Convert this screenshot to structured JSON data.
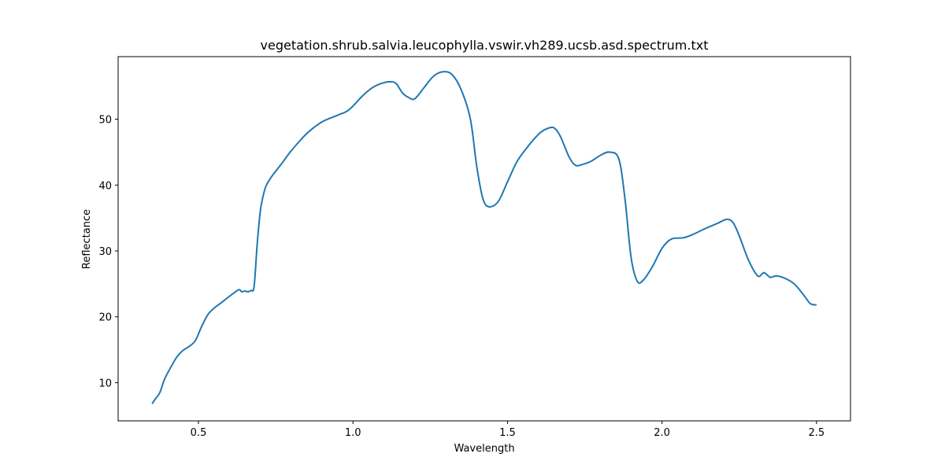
{
  "chart_data": {
    "type": "line",
    "title": "vegetation.shrub.salvia.leucophylla.vswir.vh289.ucsb.asd.spectrum.txt",
    "xlabel": "Wavelength",
    "ylabel": "Reflectance",
    "xlim": [
      0.24,
      2.61
    ],
    "ylim": [
      4.2,
      59.5
    ],
    "xticks": [
      0.5,
      1.0,
      1.5,
      2.0,
      2.5
    ],
    "xtick_labels": [
      "0.5",
      "1.0",
      "1.5",
      "2.0",
      "2.5"
    ],
    "yticks": [
      10,
      20,
      30,
      40,
      50
    ],
    "ytick_labels": [
      "10",
      "20",
      "30",
      "40",
      "50"
    ],
    "grid": false,
    "line_color": "#1f77b4",
    "series": [
      {
        "x": [
          0.35,
          0.36,
          0.375,
          0.39,
          0.41,
          0.43,
          0.45,
          0.47,
          0.49,
          0.51,
          0.53,
          0.55,
          0.57,
          0.6,
          0.63,
          0.64,
          0.65,
          0.66,
          0.67,
          0.68,
          0.69,
          0.7,
          0.71,
          0.72,
          0.74,
          0.77,
          0.8,
          0.85,
          0.9,
          0.95,
          0.98,
          1.0,
          1.03,
          1.06,
          1.09,
          1.12,
          1.14,
          1.16,
          1.18,
          1.2,
          1.23,
          1.26,
          1.29,
          1.32,
          1.35,
          1.38,
          1.4,
          1.42,
          1.44,
          1.47,
          1.5,
          1.53,
          1.56,
          1.59,
          1.61,
          1.63,
          1.65,
          1.67,
          1.7,
          1.72,
          1.74,
          1.77,
          1.8,
          1.83,
          1.86,
          1.88,
          1.9,
          1.92,
          1.94,
          1.97,
          2.0,
          2.03,
          2.07,
          2.1,
          2.14,
          2.18,
          2.21,
          2.23,
          2.25,
          2.28,
          2.31,
          2.33,
          2.35,
          2.37,
          2.4,
          2.43,
          2.46,
          2.48,
          2.5
        ],
        "y": [
          6.8,
          7.5,
          8.5,
          10.5,
          12.3,
          13.9,
          14.9,
          15.5,
          16.4,
          18.5,
          20.3,
          21.3,
          22.0,
          23.1,
          24.1,
          23.8,
          23.9,
          23.8,
          24.0,
          24.6,
          31.0,
          36.0,
          38.5,
          40.0,
          41.5,
          43.3,
          45.2,
          47.8,
          49.6,
          50.6,
          51.2,
          52.0,
          53.5,
          54.7,
          55.4,
          55.7,
          55.4,
          54.0,
          53.3,
          53.1,
          54.8,
          56.5,
          57.2,
          56.8,
          54.5,
          50.0,
          43.0,
          38.0,
          36.7,
          37.5,
          40.5,
          43.5,
          45.5,
          47.2,
          48.1,
          48.6,
          48.7,
          47.5,
          44.2,
          43.0,
          43.1,
          43.6,
          44.5,
          45.0,
          44.0,
          38.0,
          29.0,
          25.4,
          25.6,
          27.7,
          30.4,
          31.8,
          32.0,
          32.5,
          33.4,
          34.2,
          34.8,
          34.3,
          32.3,
          28.6,
          26.2,
          26.7,
          26.0,
          26.2,
          25.8,
          24.9,
          23.2,
          22.0,
          21.8
        ]
      }
    ]
  }
}
